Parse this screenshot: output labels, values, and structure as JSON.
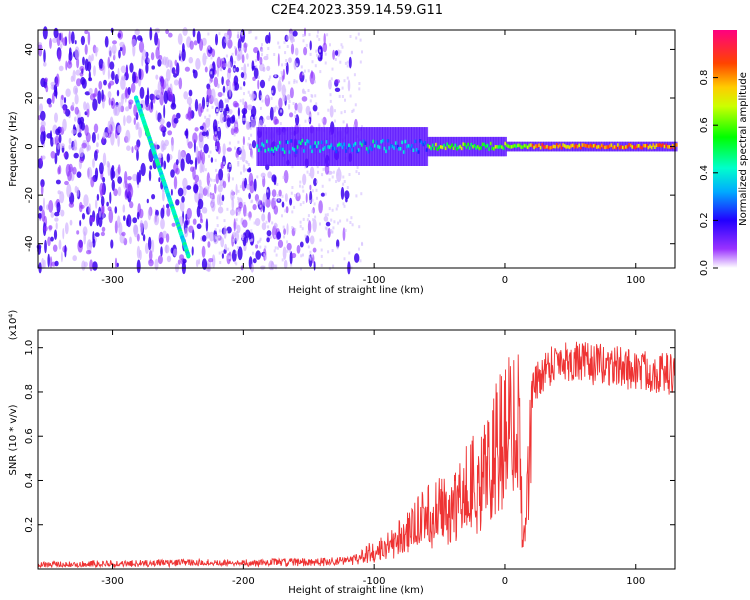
{
  "title": "C2E4.2023.359.14.59.G11",
  "chart_data": [
    {
      "type": "heatmap",
      "xlabel": "Height of straight line (km)",
      "ylabel": "Frequency (Hz)",
      "xlim": [
        -357,
        130
      ],
      "ylim": [
        -50,
        48
      ],
      "xticks": [
        -300,
        -200,
        -100,
        0,
        100
      ],
      "yticks": [
        -40,
        -20,
        0,
        20,
        40
      ],
      "colorbar": {
        "label": "Normalized spectral amplitude",
        "range": [
          0,
          1
        ],
        "ticks": [
          "0.0",
          "0.2",
          "0.4",
          "0.6",
          "0.8"
        ],
        "tick_values": [
          0,
          0.2,
          0.4,
          0.6,
          0.8
        ],
        "colormap": [
          "#ffffff",
          "#8000ff",
          "#0000ff",
          "#00ffff",
          "#00ff00",
          "#ffff00",
          "#ff8000",
          "#ff0000",
          "#ff0080"
        ]
      },
      "features": [
        {
          "kind": "diagonal_streak",
          "x": [
            -282,
            -242
          ],
          "y": [
            20,
            -45
          ],
          "amplitude": 0.4
        },
        {
          "kind": "carrier_band",
          "x": [
            -190,
            130
          ],
          "center_frequency": 0,
          "amplitude_range": [
            0.4,
            0.9
          ]
        }
      ]
    },
    {
      "type": "line",
      "xlabel": "Height of straight line (km)",
      "ylabel": "SNR (10 * v/v)",
      "y_multiplier": "(x10⁴)",
      "xlim": [
        -357,
        130
      ],
      "ylim": [
        0,
        1.08
      ],
      "xticks": [
        -300,
        -200,
        -100,
        0,
        100
      ],
      "yticks": [
        "0.2",
        "0.4",
        "0.6",
        "0.8",
        "1.0"
      ],
      "ytick_values": [
        0.2,
        0.4,
        0.6,
        0.8,
        1.0
      ],
      "color": "#ee3333",
      "series": [
        {
          "x": [
            -357,
            -300,
            -250,
            -200,
            -150,
            -120,
            -100,
            -80,
            -60,
            -40,
            -20,
            -10,
            0,
            10,
            14,
            20,
            30,
            40,
            60,
            80,
            100,
            130
          ],
          "values": [
            0.02,
            0.025,
            0.03,
            0.03,
            0.035,
            0.04,
            0.08,
            0.15,
            0.25,
            0.3,
            0.45,
            0.55,
            0.7,
            0.75,
            0.12,
            0.8,
            0.9,
            0.95,
            0.93,
            0.92,
            0.9,
            0.88
          ]
        }
      ]
    }
  ]
}
